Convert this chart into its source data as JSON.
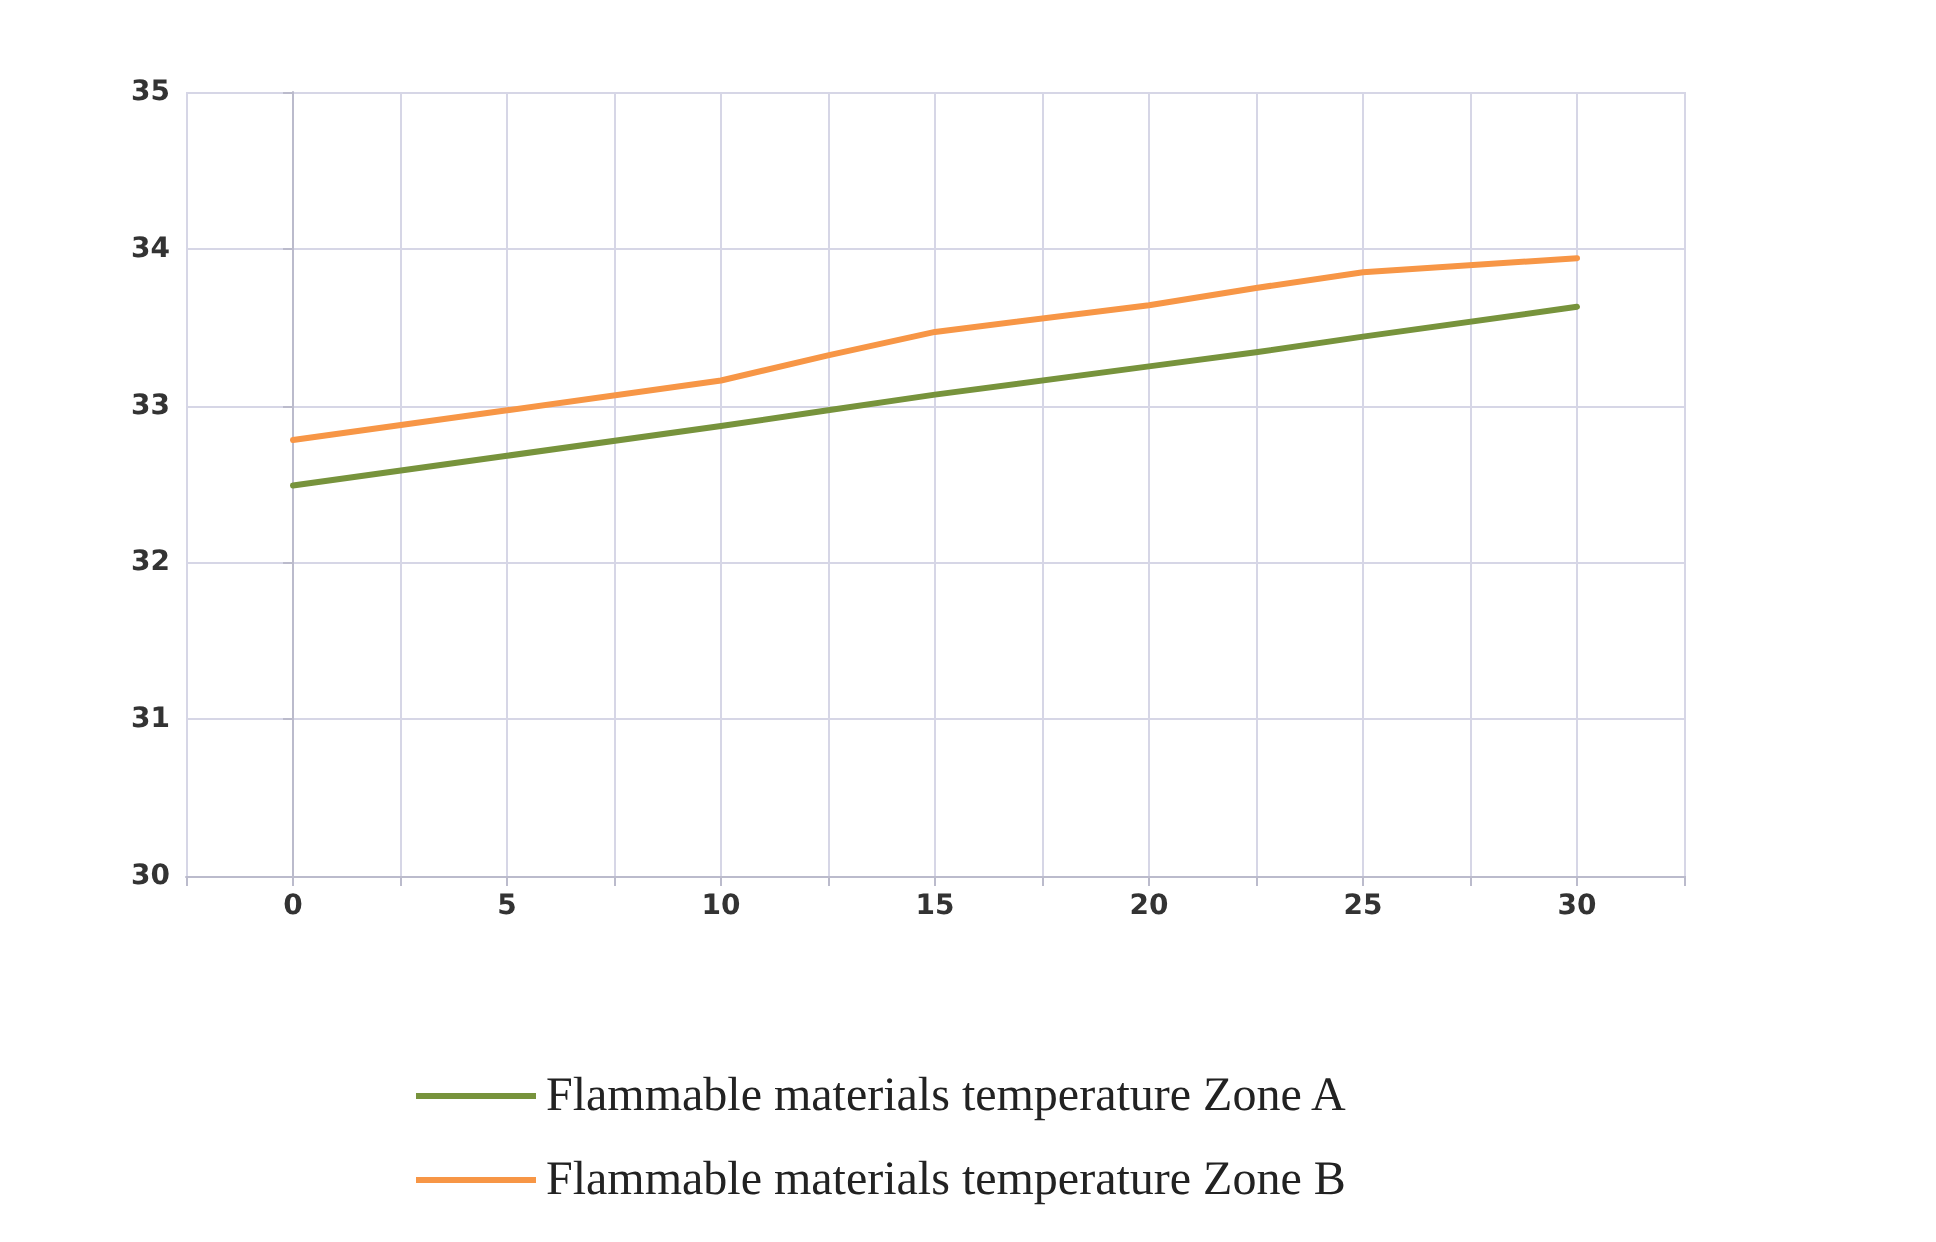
{
  "chart_data": {
    "type": "line",
    "x": [
      0,
      5,
      10,
      12.5,
      15,
      20,
      22.5,
      25,
      30
    ],
    "series": [
      {
        "name": "Flammable materials temperature Zone A",
        "color": "#77933c",
        "values": [
          32.49,
          32.68,
          32.87,
          32.97,
          33.07,
          33.25,
          33.34,
          33.44,
          33.63
        ]
      },
      {
        "name": "Flammable materials temperature Zone B",
        "color": "#f79646",
        "values": [
          32.78,
          32.97,
          33.16,
          33.32,
          33.47,
          33.64,
          33.75,
          33.85,
          33.94
        ]
      }
    ],
    "xlim": [
      -2.5,
      32.5
    ],
    "xticks": [
      {
        "value": -2.5,
        "label": null
      },
      0,
      {
        "value": 2.5,
        "label": null
      },
      5,
      {
        "value": 7.5,
        "label": null
      },
      10,
      {
        "value": 12.5,
        "label": null
      },
      15,
      {
        "value": 17.5,
        "label": null
      },
      20,
      {
        "value": 22.5,
        "label": null
      },
      25,
      {
        "value": 27.5,
        "label": null
      },
      30,
      {
        "value": 32.5,
        "label": null
      }
    ],
    "ylim": [
      30,
      35
    ],
    "yticks": [
      30,
      31,
      32,
      33,
      34,
      35
    ],
    "grid": true,
    "legend": "bottom",
    "marker": "none",
    "line_style": "solid"
  }
}
